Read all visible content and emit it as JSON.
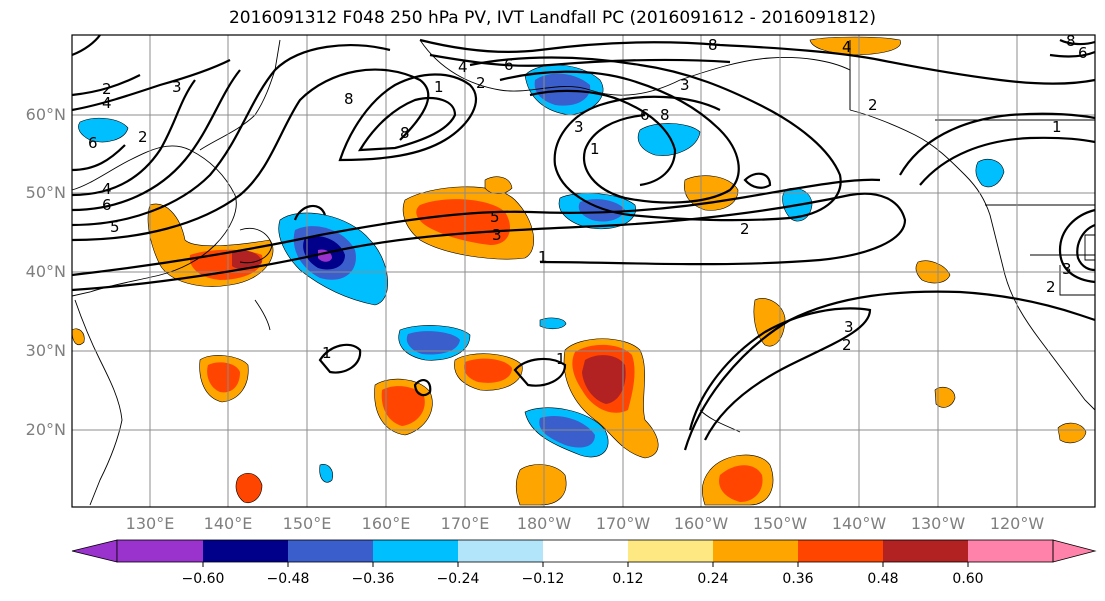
{
  "title": "2016091312 F048 250 hPa PV, IVT Landfall PC (2016091612 - 2016091812)",
  "map": {
    "lat_labels": [
      "60°N",
      "50°N",
      "40°N",
      "30°N",
      "20°N"
    ],
    "lon_labels": [
      "130°E",
      "140°E",
      "150°E",
      "160°E",
      "170°E",
      "180°W",
      "170°W",
      "160°W",
      "150°W",
      "140°W",
      "130°W",
      "120°W"
    ],
    "contour_labels": [
      "1",
      "2",
      "3",
      "4",
      "5",
      "6",
      "8"
    ]
  },
  "colorbar": {
    "ticks": [
      "−0.60",
      "−0.48",
      "−0.36",
      "−0.24",
      "−0.12",
      "0.12",
      "0.24",
      "0.36",
      "0.48",
      "0.60"
    ],
    "colors": [
      "#9a32cd",
      "#00008b",
      "#3a5fcd",
      "#00bfff",
      "#b2e4fa",
      "#ffffff",
      "#fde882",
      "#ffa500",
      "#ff4500",
      "#b22222",
      "#ff82ab"
    ],
    "extend": "both"
  }
}
